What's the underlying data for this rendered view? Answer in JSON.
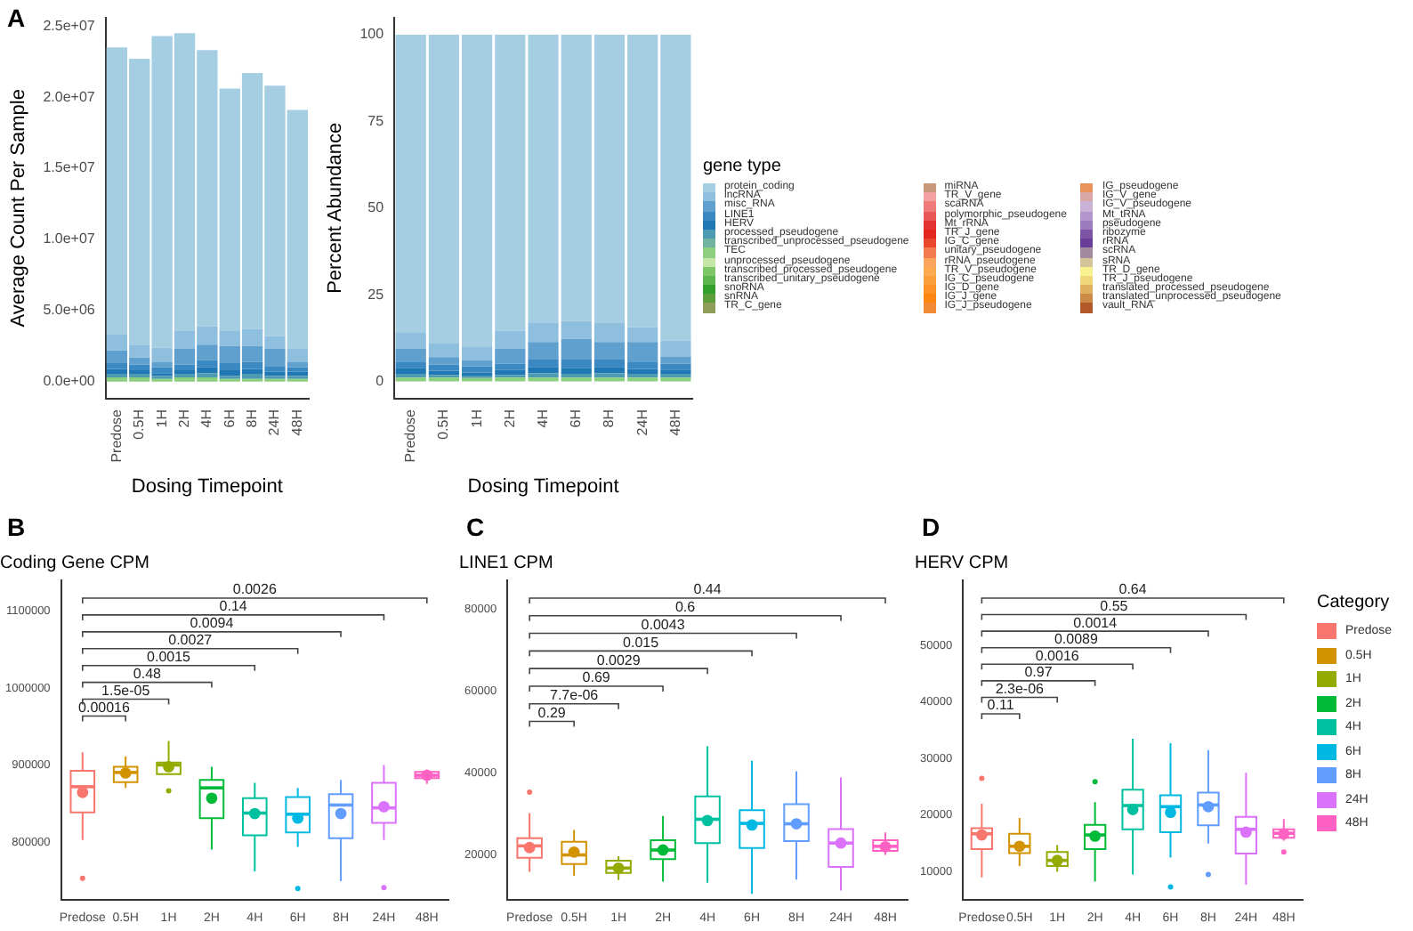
{
  "chart_data": [
    {
      "type": "bar",
      "stacked": true,
      "annotations": [
        "A"
      ],
      "xlabel": "Dosing Timepoint",
      "ylabel": "Average Count Per Sample",
      "categories": [
        "Predose",
        "0.5H",
        "1H",
        "2H",
        "4H",
        "6H",
        "8H",
        "24H",
        "48H"
      ],
      "ylim": [
        -1200000,
        25600000
      ],
      "yticks": [
        {
          "value": 0,
          "label": "0.0e+00"
        },
        {
          "value": 5000000,
          "label": "5.0e+06"
        },
        {
          "value": 10000000,
          "label": "1.0e+07"
        },
        {
          "value": 15000000,
          "label": "1.5e+07"
        },
        {
          "value": 20000000,
          "label": "2.0e+07"
        },
        {
          "value": 25000000,
          "label": "2.5e+07"
        }
      ],
      "series": [
        {
          "color": "#8ccf7e",
          "values": [
            300000,
            300000,
            200000,
            300000,
            300000,
            200000,
            200000,
            200000,
            200000
          ]
        },
        {
          "color": "#4e9ab0",
          "values": [
            200000,
            200000,
            200000,
            200000,
            300000,
            200000,
            300000,
            200000,
            200000
          ]
        },
        {
          "color": "#1f78b4",
          "values": [
            400000,
            300000,
            200000,
            300000,
            400000,
            400000,
            400000,
            300000,
            300000
          ]
        },
        {
          "color": "#3a89c2",
          "values": [
            400000,
            400000,
            400000,
            400000,
            500000,
            500000,
            500000,
            400000,
            300000
          ]
        },
        {
          "color": "#5fa0cf",
          "values": [
            900000,
            500000,
            400000,
            1100000,
            1100000,
            1200000,
            1100000,
            1200000,
            400000
          ]
        },
        {
          "color": "#8fbfdf",
          "values": [
            1100000,
            900000,
            1000000,
            1300000,
            1300000,
            1100000,
            1200000,
            900000,
            900000
          ]
        },
        {
          "color": "#a6cee3",
          "values": [
            20200000,
            20100000,
            21900000,
            20900000,
            19400000,
            17000000,
            18000000,
            17600000,
            16800000
          ]
        }
      ]
    },
    {
      "type": "bar",
      "stacked": true,
      "xlabel": "Dosing Timepoint",
      "ylabel": "Percent Abundance",
      "legend": "right",
      "legend_title": "gene type",
      "categories": [
        "Predose",
        "0.5H",
        "1H",
        "2H",
        "4H",
        "6H",
        "8H",
        "24H",
        "48H"
      ],
      "ylim": [
        -5,
        105
      ],
      "yticks": [
        0,
        25,
        50,
        75,
        100
      ],
      "series": [
        {
          "name": "vault_RNA",
          "color": "#b15928",
          "values": [
            0,
            0,
            0,
            0,
            0,
            0,
            0,
            0,
            0
          ]
        },
        {
          "name": "translated_unprocessed_pseudogene",
          "color": "#cc8a47",
          "values": [
            0,
            0,
            0,
            0,
            0,
            0,
            0,
            0,
            0
          ]
        },
        {
          "name": "translated_processed_pseudogene",
          "color": "#dfb05e",
          "values": [
            0,
            0,
            0,
            0,
            0,
            0,
            0,
            0,
            0
          ]
        },
        {
          "name": "TR_J_pseudogene",
          "color": "#efd77a",
          "values": [
            0,
            0,
            0,
            0,
            0,
            0,
            0,
            0,
            0
          ]
        },
        {
          "name": "TR_D_gene",
          "color": "#f7f18f",
          "values": [
            0,
            0,
            0,
            0,
            0,
            0,
            0,
            0,
            0
          ]
        },
        {
          "name": "sRNA",
          "color": "#d5c39a",
          "values": [
            0,
            0,
            0,
            0,
            0,
            0,
            0,
            0,
            0
          ]
        },
        {
          "name": "scRNA",
          "color": "#a38a9f",
          "values": [
            0,
            0,
            0,
            0,
            0,
            0,
            0,
            0,
            0
          ]
        },
        {
          "name": "rRNA",
          "color": "#6a3d9a",
          "values": [
            0,
            0,
            0,
            0,
            0,
            0,
            0,
            0,
            0
          ]
        },
        {
          "name": "ribozyme",
          "color": "#7e55a6",
          "values": [
            0,
            0,
            0,
            0,
            0,
            0,
            0,
            0,
            0
          ]
        },
        {
          "name": "pseudogene",
          "color": "#9d7bbf",
          "values": [
            0,
            0,
            0,
            0,
            0,
            0,
            0,
            0,
            0
          ]
        },
        {
          "name": "Mt_tRNA",
          "color": "#b394cb",
          "values": [
            0,
            0,
            0,
            0,
            0,
            0,
            0,
            0,
            0
          ]
        },
        {
          "name": "IG_V_pseudogene",
          "color": "#cab2d6",
          "values": [
            0,
            0,
            0,
            0,
            0,
            0,
            0,
            0,
            0
          ]
        },
        {
          "name": "IG_V_gene",
          "color": "#d9a7a5",
          "values": [
            0,
            0,
            0,
            0,
            0,
            0,
            0,
            0,
            0
          ]
        },
        {
          "name": "IG_pseudogene",
          "color": "#e8925c",
          "values": [
            0,
            0,
            0,
            0,
            0,
            0,
            0,
            0,
            0
          ]
        },
        {
          "name": "IG_J_pseudogene",
          "color": "#f38a35",
          "values": [
            0,
            0,
            0,
            0,
            0,
            0,
            0,
            0,
            0
          ]
        },
        {
          "name": "IG_J_gene",
          "color": "#ff8512",
          "values": [
            0,
            0,
            0,
            0,
            0,
            0,
            0,
            0,
            0
          ]
        },
        {
          "name": "IG_D_gene",
          "color": "#fe9226",
          "values": [
            0,
            0,
            0,
            0,
            0,
            0,
            0,
            0,
            0
          ]
        },
        {
          "name": "IG_C_pseudogene",
          "color": "#fd9e3c",
          "values": [
            0,
            0,
            0,
            0,
            0,
            0,
            0,
            0,
            0
          ]
        },
        {
          "name": "TR_V_pseudogene",
          "color": "#fdab52",
          "values": [
            0,
            0,
            0,
            0,
            0,
            0,
            0,
            0,
            0
          ]
        },
        {
          "name": "rRNA_pseudogene",
          "color": "#fba55e",
          "values": [
            0,
            0,
            0,
            0,
            0,
            0,
            0,
            0,
            0
          ]
        },
        {
          "name": "unitary_pseudogene",
          "color": "#f27b50",
          "values": [
            0,
            0,
            0,
            0,
            0,
            0,
            0,
            0,
            0
          ]
        },
        {
          "name": "IG_C_gene",
          "color": "#e8472e",
          "values": [
            0,
            0,
            0,
            0,
            0,
            0,
            0,
            0,
            0
          ]
        },
        {
          "name": "TR_J_gene",
          "color": "#e3261e",
          "values": [
            0,
            0,
            0,
            0,
            0,
            0,
            0,
            0,
            0
          ]
        },
        {
          "name": "Mt_rRNA",
          "color": "#e53333",
          "values": [
            0,
            0,
            0,
            0,
            0,
            0,
            0,
            0,
            0
          ]
        },
        {
          "name": "polymorphic_pseudogene",
          "color": "#e85656",
          "values": [
            0,
            0,
            0,
            0,
            0,
            0,
            0,
            0,
            0
          ]
        },
        {
          "name": "scaRNA",
          "color": "#ee7a7a",
          "values": [
            0,
            0,
            0,
            0,
            0,
            0,
            0,
            0,
            0
          ]
        },
        {
          "name": "TR_V_gene",
          "color": "#f4a0a0",
          "values": [
            0,
            0,
            0,
            0,
            0,
            0,
            0,
            0,
            0
          ]
        },
        {
          "name": "miRNA",
          "color": "#c9987a",
          "values": [
            0,
            0,
            0,
            0,
            0,
            0,
            0,
            0,
            0
          ]
        },
        {
          "name": "TR_C_gene",
          "color": "#8f9f5a",
          "values": [
            0,
            0,
            0,
            0,
            0,
            0,
            0,
            0,
            0
          ]
        },
        {
          "name": "snRNA",
          "color": "#5c9f3b",
          "values": [
            0,
            0,
            0,
            0,
            0,
            0,
            0,
            0,
            0
          ]
        },
        {
          "name": "snoRNA",
          "color": "#33a02c",
          "values": [
            0,
            0,
            0,
            0,
            0,
            0,
            0,
            0,
            0
          ]
        },
        {
          "name": "transcribed_unitary_pseudogene",
          "color": "#5db64d",
          "values": [
            0,
            0,
            0,
            0,
            0,
            0,
            0,
            0,
            0
          ]
        },
        {
          "name": "transcribed_processed_pseudogene",
          "color": "#7fc66a",
          "values": [
            0,
            0,
            0,
            0,
            0,
            0,
            0,
            0,
            0
          ]
        },
        {
          "name": "unprocessed_pseudogene",
          "color": "#c4e6a6",
          "values": [
            0,
            0,
            0,
            0,
            0,
            0,
            0,
            0,
            0
          ]
        },
        {
          "name": "TEC",
          "color": "#8ccf7e",
          "values": [
            1.1,
            1.1,
            1.0,
            1.1,
            1.1,
            1.1,
            1.1,
            1.1,
            1.1
          ]
        },
        {
          "name": "transcribed_unprocessed_pseudogene",
          "color": "#6fb3a0",
          "values": [
            0,
            0,
            0,
            0,
            0,
            0,
            0,
            0,
            0
          ]
        },
        {
          "name": "processed_pseudogene",
          "color": "#4e9ab0",
          "values": [
            0.9,
            0.8,
            0.7,
            0.8,
            1.2,
            1.1,
            1.2,
            0.9,
            0.9
          ]
        },
        {
          "name": "HERV",
          "color": "#1f78b4",
          "values": [
            1.9,
            1.2,
            0.9,
            1.4,
            1.9,
            1.7,
            1.9,
            1.6,
            1.4
          ]
        },
        {
          "name": "LINE1",
          "color": "#3a89c2",
          "values": [
            1.6,
            1.7,
            1.8,
            1.8,
            2.3,
            2.6,
            2.3,
            1.9,
            1.7
          ]
        },
        {
          "name": "misc_RNA",
          "color": "#5fa0cf",
          "values": [
            4.0,
            2.2,
            1.8,
            4.4,
            4.9,
            5.8,
            4.9,
            5.9,
            2.1
          ]
        },
        {
          "name": "lncRNA",
          "color": "#8fbfdf",
          "values": [
            4.7,
            4.1,
            3.9,
            5.1,
            5.6,
            5.1,
            5.4,
            4.3,
            4.6
          ]
        },
        {
          "name": "protein_coding",
          "color": "#a6cee3",
          "values": [
            85.8,
            88.9,
            89.9,
            85.4,
            83.0,
            82.6,
            83.2,
            84.3,
            88.2
          ]
        }
      ]
    },
    {
      "type": "box",
      "title": "Coding Gene CPM",
      "annotations": [
        "B",
        "0.00016",
        "1.5e-05",
        "0.48",
        "0.0015",
        "0.0027",
        "0.0094",
        "0.14",
        "0.0026"
      ],
      "categories": [
        "Predose",
        "0.5H",
        "1H",
        "2H",
        "4H",
        "6H",
        "8H",
        "24H",
        "48H"
      ],
      "colors": [
        "#f8766d",
        "#d39200",
        "#93aa00",
        "#00ba38",
        "#00c19f",
        "#00b9e3",
        "#619cff",
        "#db72fb",
        "#ff61c3"
      ],
      "ylim": [
        725000,
        1140000
      ],
      "yticks": [
        800000,
        900000,
        1000000,
        1100000
      ],
      "boxes": [
        {
          "low": 803000,
          "q1": 838700,
          "median": 872100,
          "q3": 892900,
          "high": 916600,
          "mean": 864700,
          "outliers": [
            753300
          ]
        },
        {
          "low": 870600,
          "q1": 878000,
          "median": 890600,
          "q3": 898100,
          "high": 911400,
          "mean": 889900
        },
        {
          "low": 888400,
          "q1": 888400,
          "median": 900300,
          "q3": 903300,
          "high": 931500,
          "mean": 898100,
          "outliers": [
            866900
          ]
        },
        {
          "low": 790400,
          "q1": 831300,
          "median": 870600,
          "q3": 881000,
          "high": 898100,
          "mean": 857200
        },
        {
          "low": 762200,
          "q1": 808900,
          "median": 837900,
          "q3": 857200,
          "high": 877300,
          "mean": 837200
        },
        {
          "low": 794100,
          "q1": 812700,
          "median": 836400,
          "q3": 858700,
          "high": 870600,
          "mean": 831300,
          "outliers": [
            740000
          ]
        },
        {
          "low": 749600,
          "q1": 805300,
          "median": 848300,
          "q3": 862400,
          "high": 881000,
          "mean": 837200
        },
        {
          "low": 803000,
          "q1": 825300,
          "median": 844600,
          "q3": 877300,
          "high": 900300,
          "mean": 846100,
          "outliers": [
            741000
          ]
        },
        {
          "low": 875800,
          "q1": 883200,
          "median": 886900,
          "q3": 891400,
          "high": 894400,
          "mean": 886900
        }
      ]
    },
    {
      "type": "box",
      "title": "LINE1 CPM",
      "annotations": [
        "C",
        "0.29",
        "7.7e-06",
        "0.69",
        "0.0029",
        "0.015",
        "0.0043",
        "0.6",
        "0.44"
      ],
      "categories": [
        "Predose",
        "0.5H",
        "1H",
        "2H",
        "4H",
        "6H",
        "8H",
        "24H",
        "48H"
      ],
      "colors": [
        "#f8766d",
        "#d39200",
        "#93aa00",
        "#00ba38",
        "#00c19f",
        "#00b9e3",
        "#619cff",
        "#db72fb",
        "#ff61c3"
      ],
      "ylim": [
        9000,
        87000
      ],
      "yticks": [
        20000,
        40000,
        60000,
        80000
      ],
      "boxes": [
        {
          "low": 15900,
          "q1": 19300,
          "median": 22200,
          "q3": 24100,
          "high": 30200,
          "mean": 21800,
          "outliers": [
            35300
          ]
        },
        {
          "low": 14900,
          "q1": 17800,
          "median": 20000,
          "q3": 23200,
          "high": 26100,
          "mean": 20700
        },
        {
          "low": 13900,
          "q1": 15600,
          "median": 16800,
          "q3": 18600,
          "high": 19700,
          "mean": 16800
        },
        {
          "low": 13500,
          "q1": 19000,
          "median": 21200,
          "q3": 23600,
          "high": 29500,
          "mean": 21200
        },
        {
          "low": 13200,
          "q1": 22900,
          "median": 28700,
          "q3": 34300,
          "high": 46500,
          "mean": 28400
        },
        {
          "low": 10500,
          "q1": 21700,
          "median": 27700,
          "q3": 30900,
          "high": 43000,
          "mean": 27300
        },
        {
          "low": 14000,
          "q1": 23400,
          "median": 27600,
          "q3": 32400,
          "high": 40400,
          "mean": 27600
        },
        {
          "low": 11300,
          "q1": 17100,
          "median": 22900,
          "q3": 26300,
          "high": 38900,
          "mean": 22900
        },
        {
          "low": 20000,
          "q1": 21000,
          "median": 22100,
          "q3": 23600,
          "high": 25500,
          "mean": 22000
        }
      ]
    },
    {
      "type": "box",
      "title": "HERV CPM",
      "annotations": [
        "D",
        "0.11",
        "2.3e-06",
        "0.97",
        "0.0016",
        "0.0089",
        "0.0014",
        "0.55",
        "0.64"
      ],
      "legend_title": "Category",
      "categories": [
        "Predose",
        "0.5H",
        "1H",
        "2H",
        "4H",
        "6H",
        "8H",
        "24H",
        "48H"
      ],
      "colors": [
        "#f8766d",
        "#d39200",
        "#93aa00",
        "#00ba38",
        "#00c19f",
        "#00b9e3",
        "#619cff",
        "#db72fb",
        "#ff61c3"
      ],
      "ylim": [
        5000,
        61500
      ],
      "yticks": [
        10000,
        20000,
        30000,
        40000,
        50000
      ],
      "boxes": [
        {
          "low": 9000,
          "q1": 14000,
          "median": 16700,
          "q3": 17700,
          "high": 22000,
          "mean": 16500,
          "outliers": [
            26500
          ]
        },
        {
          "low": 11000,
          "q1": 13300,
          "median": 14500,
          "q3": 16700,
          "high": 19500,
          "mean": 14500
        },
        {
          "low": 10000,
          "q1": 11000,
          "median": 12000,
          "q3": 13500,
          "high": 14700,
          "mean": 12000
        },
        {
          "low": 8300,
          "q1": 14000,
          "median": 16500,
          "q3": 18300,
          "high": 22300,
          "mean": 16300,
          "outliers": [
            25900
          ]
        },
        {
          "low": 9500,
          "q1": 17500,
          "median": 21700,
          "q3": 24500,
          "high": 33500,
          "mean": 21000
        },
        {
          "low": 12500,
          "q1": 17000,
          "median": 21500,
          "q3": 23500,
          "high": 32700,
          "mean": 20500,
          "outliers": [
            7300
          ]
        },
        {
          "low": 15000,
          "q1": 18200,
          "median": 21800,
          "q3": 24000,
          "high": 31500,
          "mean": 21500,
          "outliers": [
            9500
          ]
        },
        {
          "low": 7700,
          "q1": 13200,
          "median": 17500,
          "q3": 19700,
          "high": 27500,
          "mean": 17000
        },
        {
          "low": 15500,
          "q1": 16000,
          "median": 16800,
          "q3": 17500,
          "high": 19300,
          "mean": 16700,
          "outliers": [
            13500
          ]
        }
      ]
    }
  ]
}
